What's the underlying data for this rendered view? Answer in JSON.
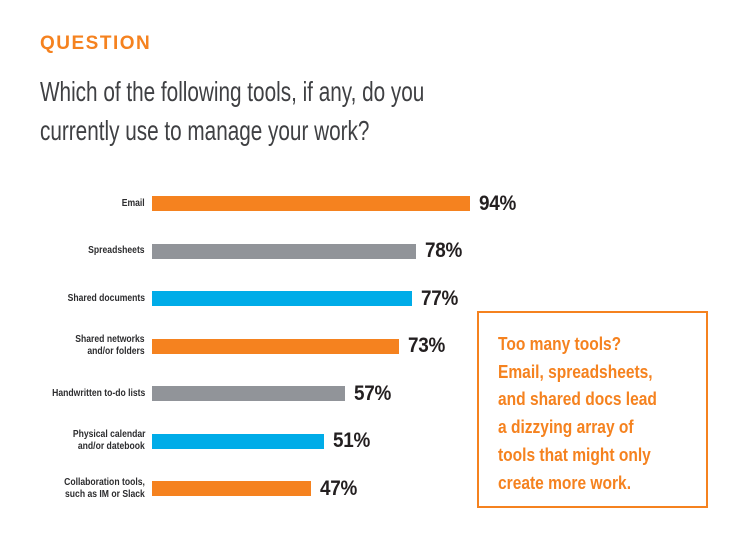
{
  "page": {
    "eyebrow": "QUESTION",
    "title": "Which of the following tools, if any, do you currently use to manage your work?",
    "title_lines": [
      "Which of the following tools, if any, do you",
      "currently use to manage your work?"
    ]
  },
  "chart_data": {
    "type": "bar",
    "orientation": "horizontal",
    "title": "Which of the following tools, if any, do you currently use to manage your work?",
    "categories": [
      "Email",
      "Spreadsheets",
      "Shared documents",
      "Shared networks and/or folders",
      "Handwritten to-do lists",
      "Physical calendar and/or datebook",
      "Collaboration tools, such as IM or Slack"
    ],
    "category_lines": [
      [
        "Email"
      ],
      [
        "Spreadsheets"
      ],
      [
        "Shared documents"
      ],
      [
        "Shared networks",
        "and/or folders"
      ],
      [
        "Handwritten to-do lists"
      ],
      [
        "Physical calendar",
        "and/or datebook"
      ],
      [
        "Collaboration tools,",
        "such as IM or Slack"
      ]
    ],
    "values": [
      94,
      78,
      77,
      73,
      57,
      51,
      47
    ],
    "value_labels": [
      "94%",
      "78%",
      "77%",
      "73%",
      "57%",
      "51%",
      "47%"
    ],
    "bar_colors": [
      "#F5821F",
      "#919499",
      "#00ACE8",
      "#F5821F",
      "#919499",
      "#00ACE8",
      "#F5821F"
    ],
    "xlim": [
      0,
      100
    ],
    "grid": false,
    "legend": false
  },
  "callout": {
    "text": "Too many tools? Email, spreadsheets, and shared docs lead a dizzying array of tools that might only create more work.",
    "lines": [
      "Too many tools?",
      "Email, spreadsheets,",
      "and shared docs lead",
      "a dizzying array of",
      "tools that might only",
      "create more work."
    ],
    "border_color": "#F5821F",
    "text_color": "#F5821F"
  },
  "colors": {
    "accent_orange": "#F5821F",
    "bar_gray": "#919499",
    "bar_blue": "#00ACE8",
    "title_text": "#3F4043",
    "value_text": "#231F20",
    "background": "#FFFFFF"
  }
}
